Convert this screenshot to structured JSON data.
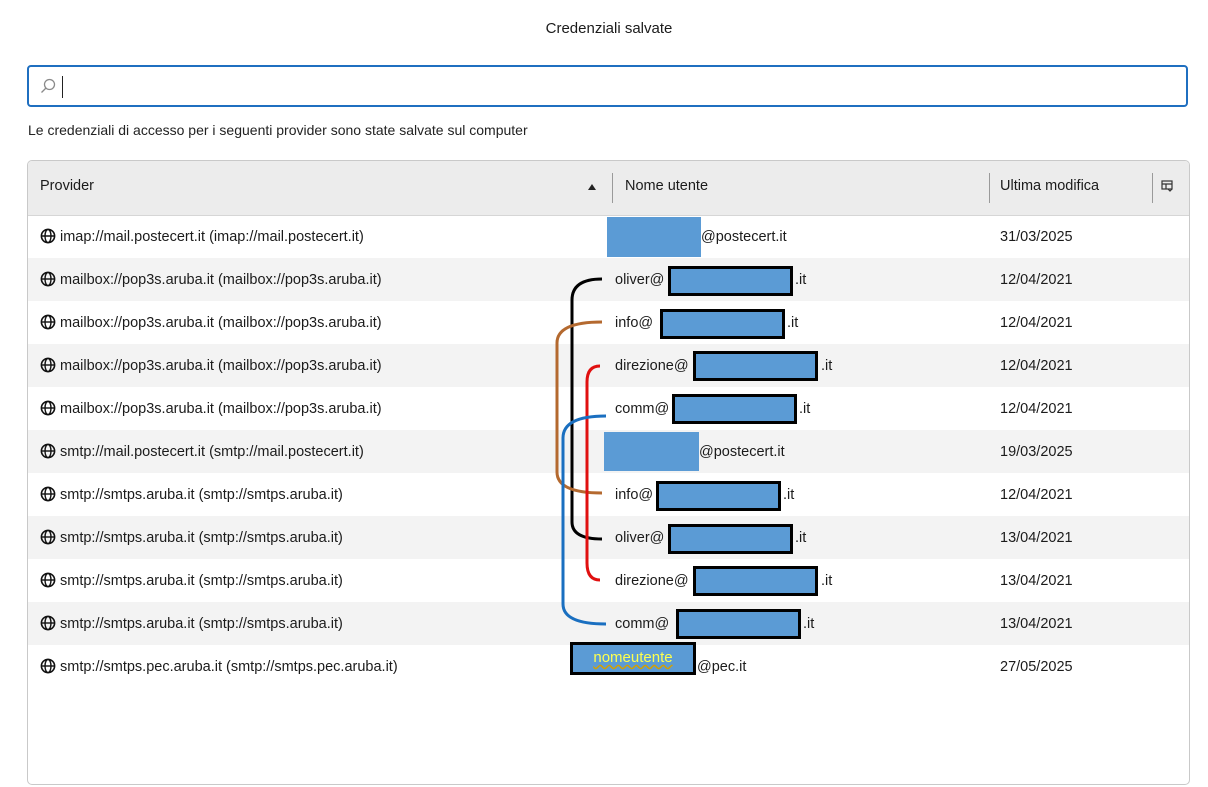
{
  "window": {
    "title": "Credenziali salvate"
  },
  "search": {
    "value": "",
    "placeholder": ""
  },
  "description": "Le credenziali di accesso per i seguenti provider sono state salvate sul computer",
  "columns": {
    "provider": "Provider",
    "username": "Nome utente",
    "modified": "Ultima modifica"
  },
  "icons": {
    "search": "search-icon",
    "globe": "globe-icon",
    "column_picker": "column-picker-icon",
    "sort": "sort-ascending-icon"
  },
  "colors": {
    "accent": "#1f6fc0",
    "redaction": "#5b9bd5",
    "bracket_black": "#000000",
    "bracket_brown": "#b4692f",
    "bracket_red": "#e01010",
    "bracket_blue": "#1a6fc0"
  },
  "rows": [
    {
      "provider": "imap://mail.postecert.it (imap://mail.postecert.it)",
      "user_prefix": "",
      "user_suffix": "@postecert.it",
      "modified": "31/03/2025"
    },
    {
      "provider": "mailbox://pop3s.aruba.it (mailbox://pop3s.aruba.it)",
      "user_prefix": "oliver@",
      "user_suffix": ".it",
      "modified": "12/04/2021"
    },
    {
      "provider": "mailbox://pop3s.aruba.it (mailbox://pop3s.aruba.it)",
      "user_prefix": "info@",
      "user_suffix": ".it",
      "modified": "12/04/2021"
    },
    {
      "provider": "mailbox://pop3s.aruba.it (mailbox://pop3s.aruba.it)",
      "user_prefix": "direzione@",
      "user_suffix": ".it",
      "modified": "12/04/2021"
    },
    {
      "provider": "mailbox://pop3s.aruba.it (mailbox://pop3s.aruba.it)",
      "user_prefix": "comm@",
      "user_suffix": ".it",
      "modified": "12/04/2021"
    },
    {
      "provider": "smtp://mail.postecert.it (smtp://mail.postecert.it)",
      "user_prefix": "",
      "user_suffix": "@postecert.it",
      "modified": "19/03/2025"
    },
    {
      "provider": "smtp://smtps.aruba.it (smtp://smtps.aruba.it)",
      "user_prefix": "info@",
      "user_suffix": ".it",
      "modified": "12/04/2021"
    },
    {
      "provider": "smtp://smtps.aruba.it (smtp://smtps.aruba.it)",
      "user_prefix": "oliver@",
      "user_suffix": ".it",
      "modified": "13/04/2021"
    },
    {
      "provider": "smtp://smtps.aruba.it (smtp://smtps.aruba.it)",
      "user_prefix": "direzione@",
      "user_suffix": ".it",
      "modified": "13/04/2021"
    },
    {
      "provider": "smtp://smtps.aruba.it (smtp://smtps.aruba.it)",
      "user_prefix": "comm@",
      "user_suffix": ".it",
      "modified": "13/04/2021"
    },
    {
      "provider": "smtp://smtps.pec.aruba.it (smtp://smtps.pec.aruba.it)",
      "user_prefix": "",
      "user_suffix": "@pec.it",
      "modified": "27/05/2025",
      "user_overlay": "nomeutente"
    }
  ]
}
